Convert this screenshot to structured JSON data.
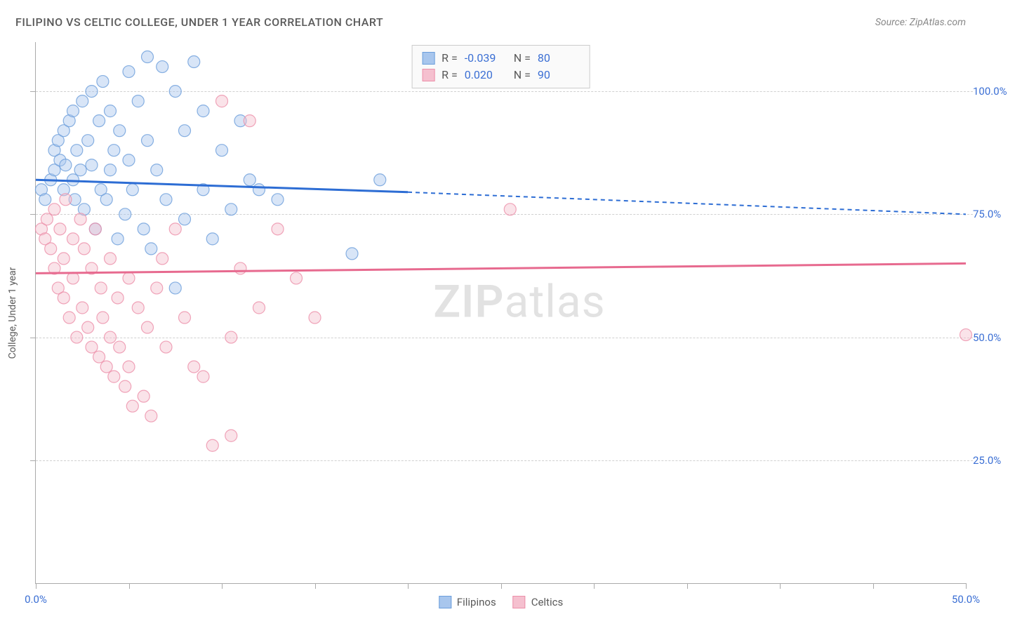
{
  "title": "FILIPINO VS CELTIC COLLEGE, UNDER 1 YEAR CORRELATION CHART",
  "source": "Source: ZipAtlas.com",
  "ylabel": "College, Under 1 year",
  "watermark_prefix": "ZIP",
  "watermark_suffix": "atlas",
  "chart": {
    "type": "scatter",
    "background": "#ffffff",
    "grid_color": "#d0d0d0",
    "axis_color": "#aaaaaa",
    "tick_label_color": "#3b6fd4",
    "text_color": "#5a5a5a",
    "xlim": [
      0,
      50
    ],
    "ylim": [
      0,
      110
    ],
    "xticks": [
      0,
      5,
      10,
      15,
      20,
      25,
      30,
      35,
      40,
      45,
      50
    ],
    "xlabels_shown": {
      "0": "0.0%",
      "50": "50.0%"
    },
    "ygrid": [
      25,
      50,
      75,
      100
    ],
    "ylabels": {
      "25": "25.0%",
      "50": "50.0%",
      "75": "75.0%",
      "100": "100.0%"
    },
    "marker_radius": 8.5,
    "marker_opacity": 0.45,
    "marker_stroke_opacity": 0.8,
    "line_width_solid": 3,
    "line_width_dash": 2,
    "dash_pattern": "6,5"
  },
  "series": [
    {
      "name": "Filipinos",
      "color_fill": "#a8c6ed",
      "color_stroke": "#6b9edb",
      "line_color": "#2d6dd4",
      "r_value": "-0.039",
      "n_value": "80",
      "trend": {
        "x1": 0,
        "y1": 82,
        "x_mid": 20,
        "y_mid": 79.5,
        "x2": 50,
        "y2": 75
      },
      "points": [
        [
          0.3,
          80
        ],
        [
          0.5,
          78
        ],
        [
          0.8,
          82
        ],
        [
          1.0,
          84
        ],
        [
          1.0,
          88
        ],
        [
          1.2,
          90
        ],
        [
          1.3,
          86
        ],
        [
          1.5,
          92
        ],
        [
          1.5,
          80
        ],
        [
          1.6,
          85
        ],
        [
          1.8,
          94
        ],
        [
          2.0,
          96
        ],
        [
          2.0,
          82
        ],
        [
          2.1,
          78
        ],
        [
          2.2,
          88
        ],
        [
          2.4,
          84
        ],
        [
          2.5,
          98
        ],
        [
          2.6,
          76
        ],
        [
          2.8,
          90
        ],
        [
          3.0,
          100
        ],
        [
          3.0,
          85
        ],
        [
          3.2,
          72
        ],
        [
          3.4,
          94
        ],
        [
          3.5,
          80
        ],
        [
          3.6,
          102
        ],
        [
          3.8,
          78
        ],
        [
          4.0,
          96
        ],
        [
          4.0,
          84
        ],
        [
          4.2,
          88
        ],
        [
          4.4,
          70
        ],
        [
          4.5,
          92
        ],
        [
          4.8,
          75
        ],
        [
          5.0,
          104
        ],
        [
          5.0,
          86
        ],
        [
          5.2,
          80
        ],
        [
          5.5,
          98
        ],
        [
          5.8,
          72
        ],
        [
          6.0,
          90
        ],
        [
          6.0,
          107
        ],
        [
          6.2,
          68
        ],
        [
          6.5,
          84
        ],
        [
          6.8,
          105
        ],
        [
          7.0,
          78
        ],
        [
          7.5,
          100
        ],
        [
          7.5,
          60
        ],
        [
          8.0,
          92
        ],
        [
          8.0,
          74
        ],
        [
          8.5,
          106
        ],
        [
          9.0,
          80
        ],
        [
          9.0,
          96
        ],
        [
          9.5,
          70
        ],
        [
          10.0,
          88
        ],
        [
          10.5,
          76
        ],
        [
          11.0,
          94
        ],
        [
          11.5,
          82
        ],
        [
          12.0,
          80
        ],
        [
          13.0,
          78
        ],
        [
          17.0,
          67
        ],
        [
          18.5,
          82
        ]
      ]
    },
    {
      "name": "Celtics",
      "color_fill": "#f5c0cf",
      "color_stroke": "#ec8fa9",
      "line_color": "#e76a8f",
      "r_value": "0.020",
      "n_value": "90",
      "trend": {
        "x1": 0,
        "y1": 63,
        "x_mid": 25,
        "y_mid": 64,
        "x2": 50,
        "y2": 65
      },
      "points": [
        [
          0.3,
          72
        ],
        [
          0.5,
          70
        ],
        [
          0.6,
          74
        ],
        [
          0.8,
          68
        ],
        [
          1.0,
          64
        ],
        [
          1.0,
          76
        ],
        [
          1.2,
          60
        ],
        [
          1.3,
          72
        ],
        [
          1.5,
          58
        ],
        [
          1.5,
          66
        ],
        [
          1.6,
          78
        ],
        [
          1.8,
          54
        ],
        [
          2.0,
          62
        ],
        [
          2.0,
          70
        ],
        [
          2.2,
          50
        ],
        [
          2.4,
          74
        ],
        [
          2.5,
          56
        ],
        [
          2.6,
          68
        ],
        [
          2.8,
          52
        ],
        [
          3.0,
          64
        ],
        [
          3.0,
          48
        ],
        [
          3.2,
          72
        ],
        [
          3.4,
          46
        ],
        [
          3.5,
          60
        ],
        [
          3.6,
          54
        ],
        [
          3.8,
          44
        ],
        [
          4.0,
          66
        ],
        [
          4.0,
          50
        ],
        [
          4.2,
          42
        ],
        [
          4.4,
          58
        ],
        [
          4.5,
          48
        ],
        [
          4.8,
          40
        ],
        [
          5.0,
          62
        ],
        [
          5.0,
          44
        ],
        [
          5.2,
          36
        ],
        [
          5.5,
          56
        ],
        [
          5.8,
          38
        ],
        [
          6.0,
          52
        ],
        [
          6.2,
          34
        ],
        [
          6.5,
          60
        ],
        [
          6.8,
          66
        ],
        [
          7.0,
          48
        ],
        [
          7.5,
          72
        ],
        [
          8.0,
          54
        ],
        [
          8.5,
          44
        ],
        [
          9.0,
          42
        ],
        [
          9.5,
          28
        ],
        [
          10.0,
          98
        ],
        [
          10.5,
          50
        ],
        [
          10.5,
          30
        ],
        [
          11.0,
          64
        ],
        [
          11.5,
          94
        ],
        [
          12.0,
          56
        ],
        [
          13.0,
          72
        ],
        [
          14.0,
          62
        ],
        [
          15.0,
          54
        ],
        [
          25.5,
          76
        ],
        [
          50.0,
          50.5
        ]
      ]
    }
  ],
  "legend_top": {
    "r_label": "R =",
    "n_label": "N ="
  },
  "legend_bottom": [
    {
      "label": "Filipinos",
      "fill": "#a8c6ed",
      "stroke": "#6b9edb"
    },
    {
      "label": "Celtics",
      "fill": "#f5c0cf",
      "stroke": "#ec8fa9"
    }
  ]
}
